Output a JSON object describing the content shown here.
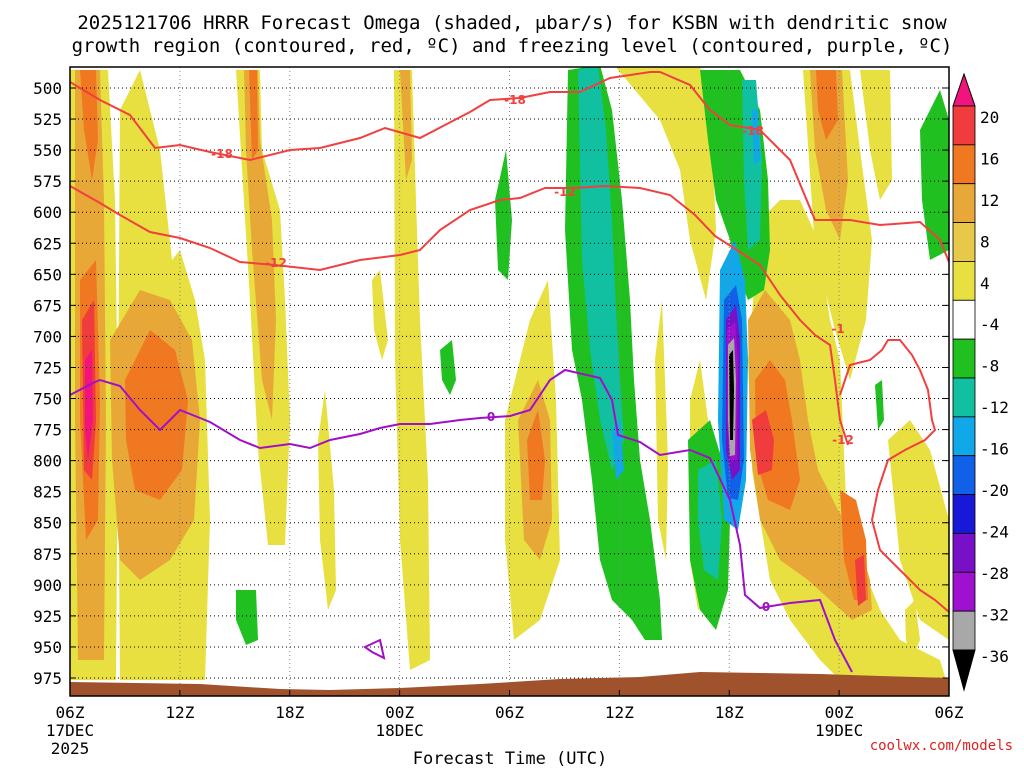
{
  "title": {
    "line1": "2025121706 HRRR Forecast Omega (shaded, μbar/s) for KSBN with dendritic snow",
    "line2": "growth region (contoured, red, ºC) and freezing level (contoured, purple, ºC)"
  },
  "credit": "coolwx.com/models",
  "colors": {
    "dendritic": "#f04040",
    "freezing": "#a010c8",
    "terrain": "#a0522d",
    "credit": "#e02020"
  },
  "chart_data": {
    "type": "heatmap",
    "title": "2025121706 HRRR Forecast Omega (shaded, μbar/s) for KSBN with dendritic snow growth region (contoured, red, ºC) and freezing level (contoured, purple, ºC)",
    "xlabel": "Forecast Time (UTC)",
    "ylabel": "",
    "y_axis": {
      "reversed": true,
      "range": [
        975,
        500
      ],
      "ticks": [
        "500",
        "525",
        "550",
        "575",
        "600",
        "625",
        "650",
        "675",
        "700",
        "725",
        "750",
        "775",
        "800",
        "825",
        "850",
        "875",
        "900",
        "925",
        "950",
        "975"
      ]
    },
    "x_axis": {
      "range_hours": [
        0,
        48
      ],
      "ticks": [
        {
          "label": "06Z",
          "sub": "17DEC",
          "sub2": "2025"
        },
        {
          "label": "12Z",
          "sub": "",
          "sub2": ""
        },
        {
          "label": "18Z",
          "sub": "",
          "sub2": ""
        },
        {
          "label": "00Z",
          "sub": "18DEC",
          "sub2": ""
        },
        {
          "label": "06Z",
          "sub": "",
          "sub2": ""
        },
        {
          "label": "12Z",
          "sub": "",
          "sub2": ""
        },
        {
          "label": "18Z",
          "sub": "",
          "sub2": ""
        },
        {
          "label": "00Z",
          "sub": "19DEC",
          "sub2": ""
        },
        {
          "label": "06Z",
          "sub": "",
          "sub2": ""
        }
      ]
    },
    "grid": true,
    "colorbar": {
      "labels": [
        "20",
        "16",
        "12",
        "8",
        "4",
        "-4",
        "-8",
        "-12",
        "-16",
        "-20",
        "-24",
        "-28",
        "-32",
        "-36"
      ],
      "colors": [
        "#f0147c",
        "#f03c3c",
        "#f07820",
        "#e8a838",
        "#e8c848",
        "#e8e040",
        "#ffffff",
        "#20c020",
        "#10c0a0",
        "#10a8e8",
        "#1060e8",
        "#1818d8",
        "#7810c8",
        "#a010d0",
        "#a8a8a8",
        "#000000"
      ]
    },
    "contour_labels": [
      {
        "text": "-18",
        "color": "#f04040"
      },
      {
        "text": "-18",
        "color": "#f04040"
      },
      {
        "text": "-18",
        "color": "#f04040"
      },
      {
        "text": "-12",
        "color": "#f04040"
      },
      {
        "text": "-12",
        "color": "#f04040"
      },
      {
        "text": "-12",
        "color": "#f04040"
      },
      {
        "text": "-1",
        "color": "#f04040"
      },
      {
        "text": "0",
        "color": "#a010c8"
      },
      {
        "text": "0",
        "color": "#a010c8"
      }
    ]
  }
}
